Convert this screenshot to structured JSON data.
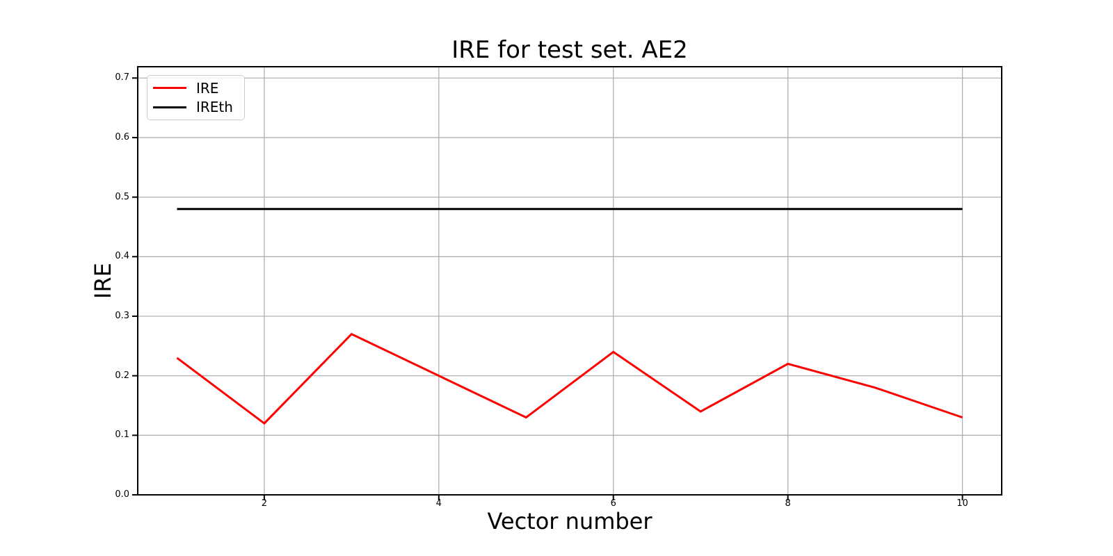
{
  "chart_data": {
    "type": "line",
    "title": "IRE for test set. AE2",
    "xlabel": "Vector number",
    "ylabel": "IRE",
    "x": [
      1,
      2,
      3,
      4,
      5,
      6,
      7,
      8,
      9,
      10
    ],
    "series": [
      {
        "name": "IRE",
        "color": "#ff0000",
        "values": [
          0.23,
          0.12,
          0.27,
          0.2,
          0.13,
          0.24,
          0.14,
          0.22,
          0.18,
          0.13
        ]
      },
      {
        "name": "IREth",
        "color": "#000000",
        "values": [
          0.48,
          0.48,
          0.48,
          0.48,
          0.48,
          0.48,
          0.48,
          0.48,
          0.48,
          0.48
        ]
      }
    ],
    "xlim": [
      0.55,
      10.45
    ],
    "ylim": [
      0.0,
      0.719
    ],
    "xticks": [
      2,
      4,
      6,
      8,
      10
    ],
    "xtick_labels": [
      "2",
      "4",
      "6",
      "8",
      "10"
    ],
    "yticks": [
      0.0,
      0.1,
      0.2,
      0.3,
      0.4,
      0.5,
      0.6,
      0.7
    ],
    "ytick_labels": [
      "0.0",
      "0.1",
      "0.2",
      "0.3",
      "0.4",
      "0.5",
      "0.6",
      "0.7"
    ],
    "grid": true,
    "grid_color": "#b0b0b0",
    "spine_color": "#000000",
    "legend_position": "upper-left"
  }
}
